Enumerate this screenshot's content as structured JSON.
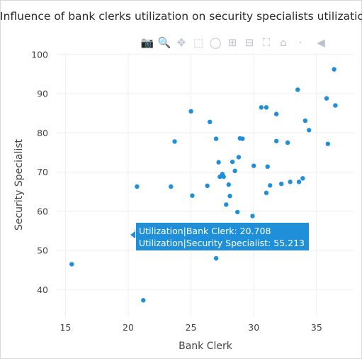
{
  "title": "Influence of bank clerks utilization on security specialists utilization",
  "modebar": [
    {
      "name": "camera-icon",
      "glyph": "📷",
      "active": false
    },
    {
      "name": "zoom-icon",
      "glyph": "🔍",
      "active": true
    },
    {
      "name": "pan-icon",
      "glyph": "✥",
      "active": false
    },
    {
      "name": "box-select-icon",
      "glyph": "⬚",
      "active": false
    },
    {
      "name": "lasso-select-icon",
      "glyph": "◯",
      "active": false
    },
    {
      "name": "zoom-in-icon",
      "glyph": "⊞",
      "active": false
    },
    {
      "name": "zoom-out-icon",
      "glyph": "⊟",
      "active": false
    },
    {
      "name": "autoscale-icon",
      "glyph": "⛶",
      "active": false
    },
    {
      "name": "reset-axes-icon",
      "glyph": "⌂",
      "active": false
    },
    {
      "name": "spike-lines-icon",
      "glyph": "⸱",
      "active": false
    },
    {
      "name": "plotly-logo-icon",
      "glyph": "◀",
      "active": false
    }
  ],
  "chart_data": {
    "type": "scatter",
    "title": "Influence of bank clerks utilization on security specialists utilization",
    "xlabel": "Bank Clerk",
    "ylabel": "Security Specialist",
    "xlim": [
      14.3,
      38.0
    ],
    "ylim": [
      33.0,
      100.5
    ],
    "xticks": [
      15,
      20,
      25,
      30,
      35
    ],
    "yticks": [
      40,
      50,
      60,
      70,
      80,
      90,
      100
    ],
    "grid": true,
    "marker_color": "#1f8fd9",
    "points": [
      [
        15.5,
        46.5
      ],
      [
        20.7,
        66.3
      ],
      [
        20.708,
        55.213
      ],
      [
        21.2,
        37.3
      ],
      [
        23.4,
        66.3
      ],
      [
        23.7,
        77.8
      ],
      [
        25.0,
        85.5
      ],
      [
        25.1,
        64.0
      ],
      [
        26.3,
        66.5
      ],
      [
        26.5,
        82.8
      ],
      [
        27.0,
        78.5
      ],
      [
        27.0,
        48.0
      ],
      [
        27.2,
        72.5
      ],
      [
        27.3,
        68.8
      ],
      [
        27.5,
        69.5
      ],
      [
        27.6,
        68.8
      ],
      [
        27.8,
        61.7
      ],
      [
        28.0,
        66.8
      ],
      [
        28.1,
        63.9
      ],
      [
        28.3,
        72.6
      ],
      [
        28.5,
        70.3
      ],
      [
        28.8,
        73.8
      ],
      [
        28.9,
        78.6
      ],
      [
        29.1,
        78.5
      ],
      [
        28.7,
        59.8
      ],
      [
        29.9,
        58.8
      ],
      [
        30.0,
        71.6
      ],
      [
        30.6,
        86.5
      ],
      [
        31.0,
        86.5
      ],
      [
        31.0,
        64.7
      ],
      [
        31.1,
        71.4
      ],
      [
        31.3,
        66.6
      ],
      [
        31.8,
        84.8
      ],
      [
        31.8,
        77.9
      ],
      [
        32.2,
        67.0
      ],
      [
        32.7,
        77.5
      ],
      [
        32.9,
        67.5
      ],
      [
        33.5,
        91.0
      ],
      [
        33.6,
        67.5
      ],
      [
        33.9,
        68.4
      ],
      [
        34.1,
        83.1
      ],
      [
        34.4,
        80.7
      ],
      [
        35.8,
        88.8
      ],
      [
        35.9,
        77.2
      ],
      [
        36.4,
        96.2
      ],
      [
        36.5,
        87.0
      ]
    ],
    "hover": {
      "line1": "Utilization|Bank Clerk: 20.708",
      "line2": "Utilization|Security Specialist: 55.213"
    }
  }
}
